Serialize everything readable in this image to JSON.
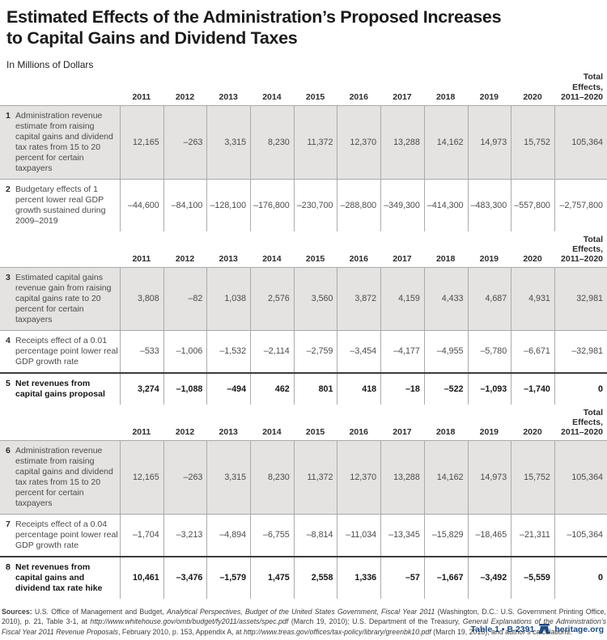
{
  "title": {
    "line1": "Estimated Effects of the Administration’s Proposed Increases",
    "line2": "to Capital Gains and Dividend Taxes"
  },
  "subtitle": "In Millions of Dollars",
  "accent_color": "#1e4a80",
  "shading_color": "#e4e3e2",
  "table": {
    "years": [
      "2011",
      "2012",
      "2013",
      "2014",
      "2015",
      "2016",
      "2017",
      "2018",
      "2019",
      "2020"
    ],
    "total_header": [
      "Total",
      "Effects,",
      "2011–2020"
    ],
    "sections": [
      {
        "rows": [
          {
            "num": "1",
            "shaded": true,
            "bold": false,
            "label": "Administration revenue estimate from raising capital gains and dividend tax rates from 15 to 20 percent for certain taxpayers",
            "values": [
              "12,165",
              "–263",
              "3,315",
              "8,230",
              "11,372",
              "12,370",
              "13,288",
              "14,162",
              "14,973",
              "15,752",
              "105,364"
            ]
          },
          {
            "num": "2",
            "shaded": false,
            "bold": false,
            "label": "Budgetary effects of 1 percent lower real GDP growth sustained during 2009–2019",
            "values": [
              "–44,600",
              "–84,100",
              "–128,100",
              "–176,800",
              "–230,700",
              "–288,800",
              "–349,300",
              "–414,300",
              "–483,300",
              "–557,800",
              "–2,757,800"
            ]
          }
        ]
      },
      {
        "rows": [
          {
            "num": "3",
            "shaded": true,
            "bold": false,
            "label": "Estimated capital gains revenue gain from raising capital gains rate to 20 percent for certain taxpayers",
            "values": [
              "3,808",
              "–82",
              "1,038",
              "2,576",
              "3,560",
              "3,872",
              "4,159",
              "4,433",
              "4,687",
              "4,931",
              "32,981"
            ]
          },
          {
            "num": "4",
            "shaded": false,
            "bold": false,
            "label": "Receipts effect of a 0.01 percentage point lower real GDP growth rate",
            "values": [
              "–533",
              "–1,006",
              "–1,532",
              "–2,114",
              "–2,759",
              "–3,454",
              "–4,177",
              "–4,955",
              "–5,780",
              "–6,671",
              "–32,981"
            ]
          },
          {
            "num": "5",
            "shaded": false,
            "bold": true,
            "label": "Net revenues from capital gains proposal",
            "values": [
              "3,274",
              "–1,088",
              "–494",
              "462",
              "801",
              "418",
              "–18",
              "–522",
              "–1,093",
              "–1,740",
              "0"
            ]
          }
        ]
      },
      {
        "rows": [
          {
            "num": "6",
            "shaded": true,
            "bold": false,
            "label": "Administration revenue estimate from raising capital gains and dividend tax rates from 15 to 20 percent for certain taxpayers",
            "values": [
              "12,165",
              "–263",
              "3,315",
              "8,230",
              "11,372",
              "12,370",
              "13,288",
              "14,162",
              "14,973",
              "15,752",
              "105,364"
            ]
          },
          {
            "num": "7",
            "shaded": false,
            "bold": false,
            "label": "Receipts effect of a 0.04 percentage point lower real GDP growth rate",
            "values": [
              "–1,704",
              "–3,213",
              "–4,894",
              "–6,755",
              "–8,814",
              "–11,034",
              "–13,345",
              "–15,829",
              "–18,465",
              "–21,311",
              "–105,364"
            ]
          },
          {
            "num": "8",
            "shaded": false,
            "bold": true,
            "label": "Net revenues from capital gains and dividend tax rate hike",
            "values": [
              "10,461",
              "–3,476",
              "–1,579",
              "1,475",
              "2,558",
              "1,336",
              "–57",
              "–1,667",
              "–3,492",
              "–5,559",
              "0"
            ]
          }
        ]
      }
    ]
  },
  "sources": {
    "segments": [
      {
        "t": "Sources: ",
        "b": true
      },
      {
        "t": "U.S. Office of Management and Budget, "
      },
      {
        "t": "Analytical Perspectives, Budget of the United States Government, Fiscal Year 2011",
        "i": true
      },
      {
        "t": " (Washington, D.C.: U.S. Government Printing Office, 2010), p. 21, Table 3-1, at "
      },
      {
        "t": "http://www.whitehouse.gov/omb/budget/fy2011/assets/spec.pdf",
        "i": true
      },
      {
        "t": " (March 19, 2010); U.S. Department of the Treasury, "
      },
      {
        "t": "General Explanations of the Administration’s Fiscal Year 2011 Revenue Proposals",
        "i": true
      },
      {
        "t": ", February 2010, p. 153, Appendix A, at "
      },
      {
        "t": "http://www.treas.gov/offices/tax-policy/library/greenbk10.pdf",
        "i": true
      },
      {
        "t": " (March 19, 2010); and author’s calculations."
      }
    ]
  },
  "footer": {
    "table_label": "Table 1 • B 2391",
    "site": "heritage.org"
  }
}
